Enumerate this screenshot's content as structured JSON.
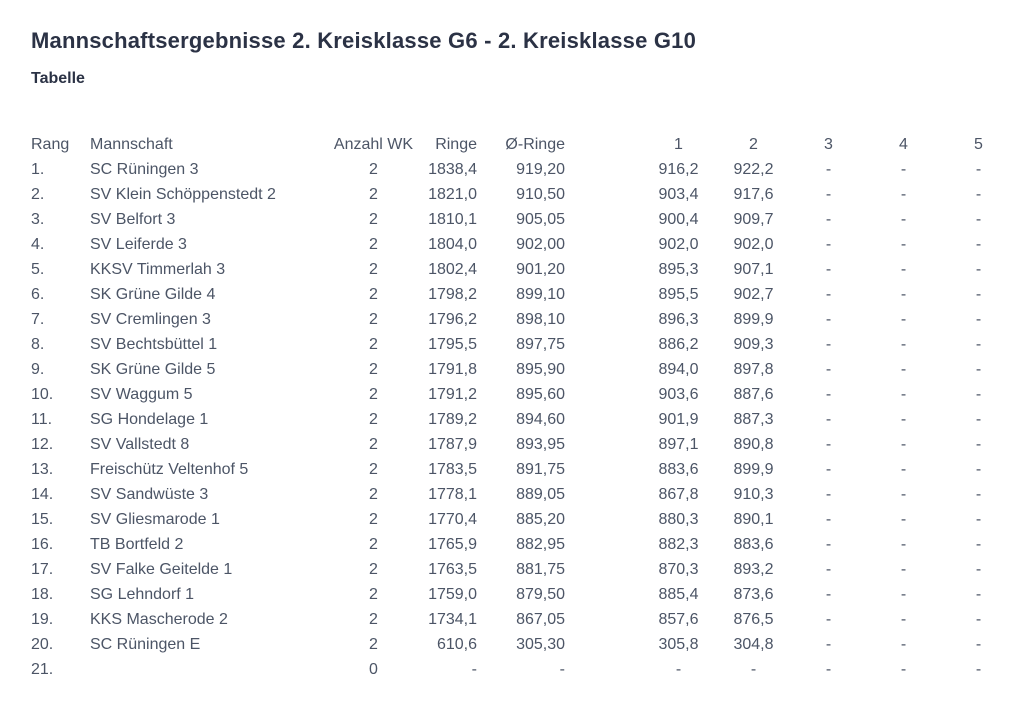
{
  "page": {
    "title": "Mannschaftsergebnisse 2. Kreisklasse G6 - 2. Kreisklasse G10",
    "subtitle": "Tabelle"
  },
  "colors": {
    "heading": "#2b3245",
    "table_text": "#4c5566",
    "background": "#ffffff"
  },
  "table": {
    "columns": [
      "Rang",
      "Mannschaft",
      "Anzahl WK",
      "Ringe",
      "Ø-Ringe",
      "1",
      "2",
      "3",
      "4",
      "5"
    ],
    "rows": [
      [
        "1.",
        "SC Rüningen 3",
        "2",
        "1838,4",
        "919,20",
        "916,2",
        "922,2",
        "-",
        "-",
        "-"
      ],
      [
        "2.",
        "SV Klein Schöppenstedt 2",
        "2",
        "1821,0",
        "910,50",
        "903,4",
        "917,6",
        "-",
        "-",
        "-"
      ],
      [
        "3.",
        "SV Belfort 3",
        "2",
        "1810,1",
        "905,05",
        "900,4",
        "909,7",
        "-",
        "-",
        "-"
      ],
      [
        "4.",
        "SV Leiferde 3",
        "2",
        "1804,0",
        "902,00",
        "902,0",
        "902,0",
        "-",
        "-",
        "-"
      ],
      [
        "5.",
        "KKSV Timmerlah 3",
        "2",
        "1802,4",
        "901,20",
        "895,3",
        "907,1",
        "-",
        "-",
        "-"
      ],
      [
        "6.",
        "SK Grüne Gilde 4",
        "2",
        "1798,2",
        "899,10",
        "895,5",
        "902,7",
        "-",
        "-",
        "-"
      ],
      [
        "7.",
        "SV Cremlingen 3",
        "2",
        "1796,2",
        "898,10",
        "896,3",
        "899,9",
        "-",
        "-",
        "-"
      ],
      [
        "8.",
        "SV Bechtsbüttel 1",
        "2",
        "1795,5",
        "897,75",
        "886,2",
        "909,3",
        "-",
        "-",
        "-"
      ],
      [
        "9.",
        "SK Grüne Gilde 5",
        "2",
        "1791,8",
        "895,90",
        "894,0",
        "897,8",
        "-",
        "-",
        "-"
      ],
      [
        "10.",
        "SV Waggum 5",
        "2",
        "1791,2",
        "895,60",
        "903,6",
        "887,6",
        "-",
        "-",
        "-"
      ],
      [
        "11.",
        "SG Hondelage 1",
        "2",
        "1789,2",
        "894,60",
        "901,9",
        "887,3",
        "-",
        "-",
        "-"
      ],
      [
        "12.",
        "SV Vallstedt 8",
        "2",
        "1787,9",
        "893,95",
        "897,1",
        "890,8",
        "-",
        "-",
        "-"
      ],
      [
        "13.",
        "Freischütz Veltenhof 5",
        "2",
        "1783,5",
        "891,75",
        "883,6",
        "899,9",
        "-",
        "-",
        "-"
      ],
      [
        "14.",
        "SV Sandwüste 3",
        "2",
        "1778,1",
        "889,05",
        "867,8",
        "910,3",
        "-",
        "-",
        "-"
      ],
      [
        "15.",
        "SV Gliesmarode 1",
        "2",
        "1770,4",
        "885,20",
        "880,3",
        "890,1",
        "-",
        "-",
        "-"
      ],
      [
        "16.",
        "TB Bortfeld 2",
        "2",
        "1765,9",
        "882,95",
        "882,3",
        "883,6",
        "-",
        "-",
        "-"
      ],
      [
        "17.",
        "SV Falke Geitelde 1",
        "2",
        "1763,5",
        "881,75",
        "870,3",
        "893,2",
        "-",
        "-",
        "-"
      ],
      [
        "18.",
        "SG Lehndorf 1",
        "2",
        "1759,0",
        "879,50",
        "885,4",
        "873,6",
        "-",
        "-",
        "-"
      ],
      [
        "19.",
        "KKS Mascherode 2",
        "2",
        "1734,1",
        "867,05",
        "857,6",
        "876,5",
        "-",
        "-",
        "-"
      ],
      [
        "20.",
        "SC Rüningen E",
        "2",
        "610,6",
        "305,30",
        "305,8",
        "304,8",
        "-",
        "-",
        "-"
      ],
      [
        "21.",
        "",
        "0",
        "-",
        "-",
        "-",
        "-",
        "-",
        "-",
        "-"
      ]
    ]
  }
}
